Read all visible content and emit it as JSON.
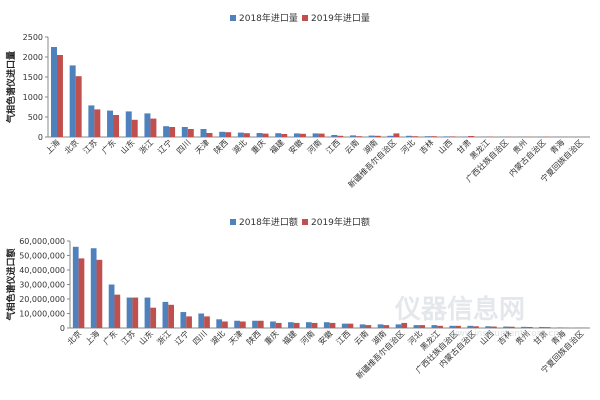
{
  "watermark": {
    "logo": "仪器信息网",
    "url": "www.instrument.com.cn"
  },
  "chart_data": [
    {
      "type": "bar",
      "ylabel": "气相色谱仪进口量",
      "ylim": [
        0,
        2500
      ],
      "yticks": [
        0,
        500,
        1000,
        1500,
        2000,
        2500
      ],
      "ytick_labels": [
        "0",
        "500",
        "1000",
        "1500",
        "2000",
        "2500"
      ],
      "legend_position": "top-center",
      "categories": [
        "上海",
        "北京",
        "江苏",
        "广东",
        "山东",
        "浙江",
        "辽宁",
        "四川",
        "天津",
        "陕西",
        "湖北",
        "重庆",
        "福建",
        "安徽",
        "河南",
        "江西",
        "云南",
        "湖南",
        "新疆维吾尔自治区",
        "河北",
        "吉林",
        "山西",
        "甘肃",
        "黑龙江",
        "广西壮族自治区",
        "贵州",
        "内蒙古自治区",
        "青海",
        "宁夏回族自治区"
      ],
      "series": [
        {
          "name": "2018年进口量",
          "color": "#4f81bd",
          "values": [
            2250,
            1790,
            790,
            660,
            640,
            590,
            270,
            250,
            200,
            130,
            110,
            100,
            95,
            90,
            90,
            50,
            40,
            35,
            30,
            30,
            20,
            15,
            10,
            8,
            6,
            5,
            4,
            2,
            1
          ]
        },
        {
          "name": "2019年进口量",
          "color": "#c0504d",
          "values": [
            2050,
            1520,
            690,
            550,
            430,
            460,
            250,
            200,
            100,
            120,
            95,
            85,
            75,
            80,
            85,
            30,
            20,
            30,
            90,
            20,
            20,
            15,
            25,
            10,
            5,
            5,
            6,
            2,
            1
          ]
        }
      ]
    },
    {
      "type": "bar",
      "ylabel": "气相色谱仪进口额",
      "ylim": [
        0,
        60000000
      ],
      "yticks": [
        0,
        10000000,
        20000000,
        30000000,
        40000000,
        50000000,
        60000000
      ],
      "ytick_labels": [
        "0",
        "10,000,000",
        "20,000,000",
        "30,000,000",
        "40,000,000",
        "50,000,000",
        "60,000,000"
      ],
      "legend_position": "top-center",
      "categories": [
        "北京",
        "上海",
        "广东",
        "江苏",
        "山东",
        "浙江",
        "辽宁",
        "四川",
        "湖北",
        "天津",
        "陕西",
        "重庆",
        "福建",
        "河南",
        "安徽",
        "江西",
        "云南",
        "湖南",
        "新疆维吾尔自治区",
        "河北",
        "黑龙江",
        "广西壮族自治区",
        "内蒙古自治区",
        "山西",
        "吉林",
        "贵州",
        "甘肃",
        "青海",
        "宁夏回族自治区"
      ],
      "series": [
        {
          "name": "2018年进口额",
          "color": "#4f81bd",
          "values": [
            56000000,
            55000000,
            30000000,
            21000000,
            21000000,
            18000000,
            11000000,
            10000000,
            6000000,
            5000000,
            5000000,
            4500000,
            4000000,
            4000000,
            4000000,
            3000000,
            2500000,
            2500000,
            2500000,
            2000000,
            2000000,
            1500000,
            1500000,
            1200000,
            1000000,
            800000,
            700000,
            400000,
            300000
          ]
        },
        {
          "name": "2019年进口额",
          "color": "#c0504d",
          "values": [
            48000000,
            47000000,
            23000000,
            21000000,
            14000000,
            16000000,
            8000000,
            8000000,
            4500000,
            4500000,
            5000000,
            3500000,
            3500000,
            3500000,
            3500000,
            3000000,
            2000000,
            2000000,
            3500000,
            2000000,
            1500000,
            1500000,
            1200000,
            1000000,
            900000,
            700000,
            600000,
            300000,
            200000
          ]
        }
      ]
    }
  ]
}
